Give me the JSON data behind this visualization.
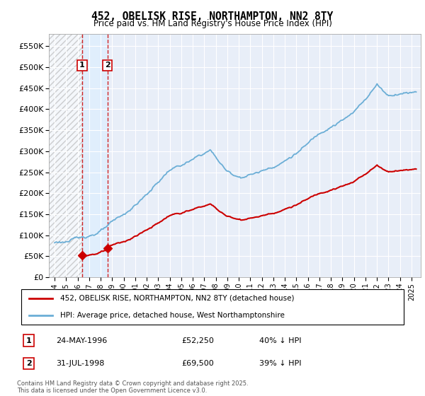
{
  "title": "452, OBELISK RISE, NORTHAMPTON, NN2 8TY",
  "subtitle": "Price paid vs. HM Land Registry's House Price Index (HPI)",
  "legend_line1": "452, OBELISK RISE, NORTHAMPTON, NN2 8TY (detached house)",
  "legend_line2": "HPI: Average price, detached house, West Northamptonshire",
  "transactions": [
    {
      "label": "1",
      "date": "24-MAY-1996",
      "price": 52250,
      "hpi_pct": "40% ↓ HPI",
      "x_year": 1996.39
    },
    {
      "label": "2",
      "date": "31-JUL-1998",
      "price": 69500,
      "hpi_pct": "39% ↓ HPI",
      "x_year": 1998.58
    }
  ],
  "footnote": "Contains HM Land Registry data © Crown copyright and database right 2025.\nThis data is licensed under the Open Government Licence v3.0.",
  "hpi_color": "#6baed6",
  "price_color": "#cc0000",
  "vline_color": "#cc0000",
  "grid_color": "#c8d4e8",
  "plot_bg": "#e8eef8",
  "ylim": [
    0,
    580000
  ],
  "yticks": [
    0,
    50000,
    100000,
    150000,
    200000,
    250000,
    300000,
    350000,
    400000,
    450000,
    500000,
    550000
  ],
  "xmin": 1993.5,
  "xmax": 2025.8,
  "t1_x": 1996.39,
  "t2_x": 1998.58,
  "price1": 52250,
  "price2": 69500
}
